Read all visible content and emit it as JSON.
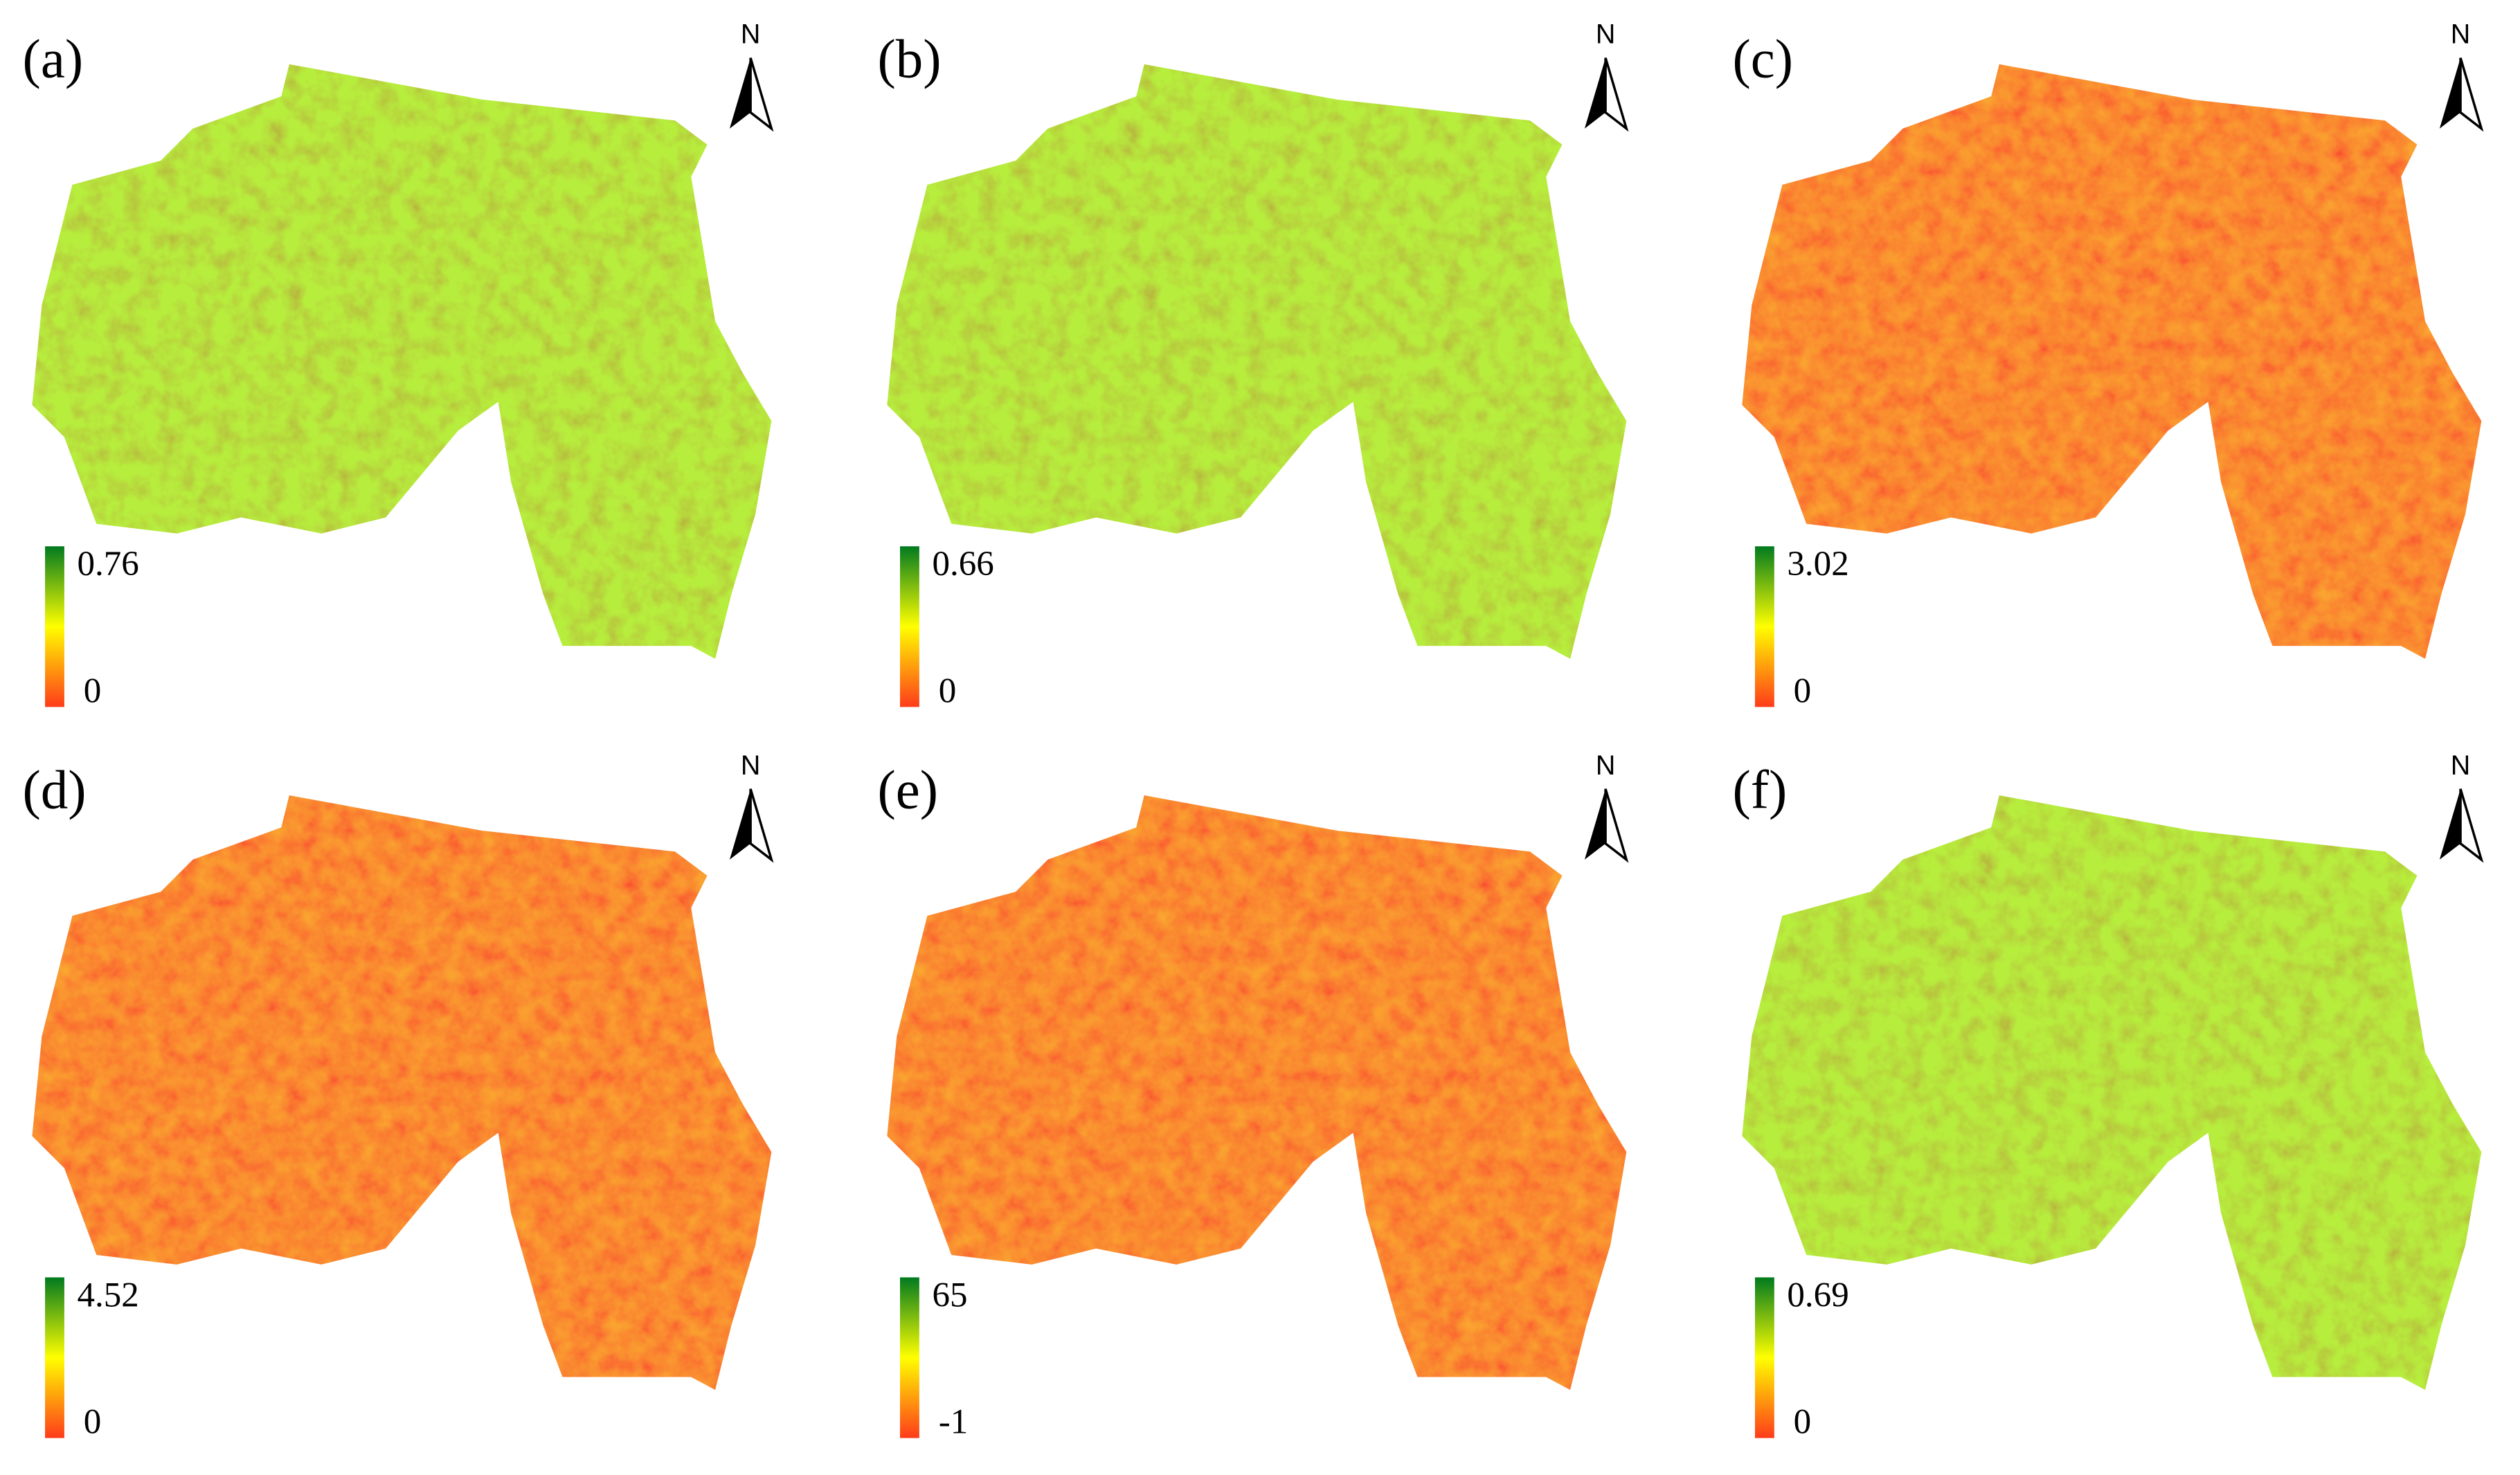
{
  "panels": [
    {
      "label": "(a)",
      "north": "N",
      "legend": {
        "max": 0.76,
        "min": 0
      }
    },
    {
      "label": "(b)",
      "north": "N",
      "legend": {
        "max": 0.66,
        "min": 0
      }
    },
    {
      "label": "(c)",
      "north": "N",
      "legend": {
        "max": 3.02,
        "min": 0
      }
    },
    {
      "label": "(d)",
      "north": "N",
      "legend": {
        "max": 4.52,
        "min": 0
      }
    },
    {
      "label": "(e)",
      "north": "N",
      "legend": {
        "max": 65,
        "min": -1
      }
    },
    {
      "label": "(f)",
      "north": "N",
      "legend": {
        "max": 0.69,
        "min": 0
      }
    }
  ]
}
